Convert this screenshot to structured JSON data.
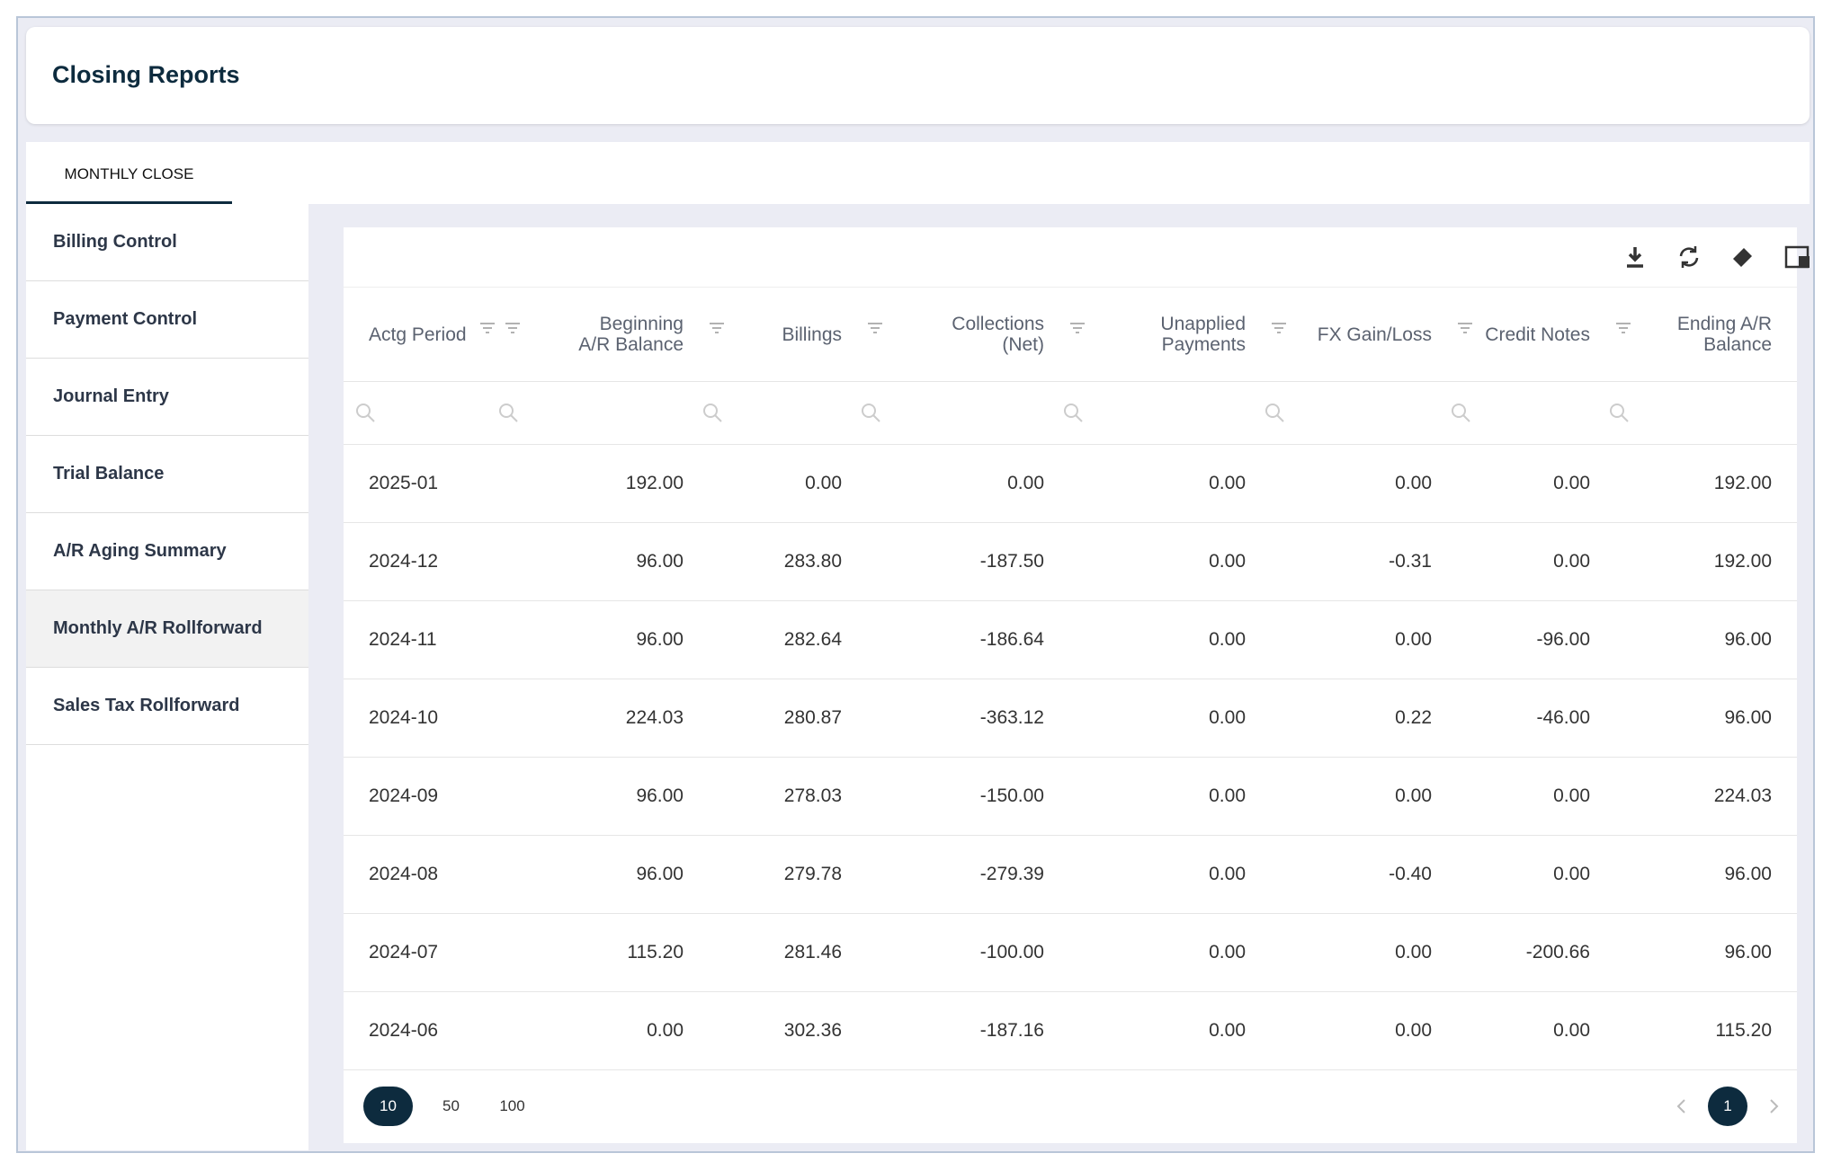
{
  "header": {
    "title": "Closing Reports"
  },
  "tabs": [
    "MONTHLY CLOSE"
  ],
  "nav": {
    "items": [
      "Billing Control",
      "Payment Control",
      "Journal Entry",
      "Trial Balance",
      "A/R Aging Summary",
      "Monthly A/R Rollforward",
      "Sales Tax Rollforward"
    ],
    "active": 5
  },
  "table": {
    "columns": [
      "Actg Period",
      "Beginning A/R Balance",
      "Billings",
      "Collections (Net)",
      "Unapplied Payments",
      "FX Gain/Loss",
      "Credit Notes",
      "Ending A/R Balance"
    ],
    "rows": [
      [
        "2025-01",
        "192.00",
        "0.00",
        "0.00",
        "0.00",
        "0.00",
        "0.00",
        "192.00"
      ],
      [
        "2024-12",
        "96.00",
        "283.80",
        "-187.50",
        "0.00",
        "-0.31",
        "0.00",
        "192.00"
      ],
      [
        "2024-11",
        "96.00",
        "282.64",
        "-186.64",
        "0.00",
        "0.00",
        "-96.00",
        "96.00"
      ],
      [
        "2024-10",
        "224.03",
        "280.87",
        "-363.12",
        "0.00",
        "0.22",
        "-46.00",
        "96.00"
      ],
      [
        "2024-09",
        "96.00",
        "278.03",
        "-150.00",
        "0.00",
        "0.00",
        "0.00",
        "224.03"
      ],
      [
        "2024-08",
        "96.00",
        "279.78",
        "-279.39",
        "0.00",
        "-0.40",
        "0.00",
        "96.00"
      ],
      [
        "2024-07",
        "115.20",
        "281.46",
        "-100.00",
        "0.00",
        "0.00",
        "-200.66",
        "96.00"
      ],
      [
        "2024-06",
        "0.00",
        "302.36",
        "-187.16",
        "0.00",
        "0.00",
        "0.00",
        "115.20"
      ]
    ]
  },
  "pagination": {
    "page_sizes": [
      "10",
      "50",
      "100"
    ],
    "selected_size": 0,
    "current_page": "1"
  }
}
